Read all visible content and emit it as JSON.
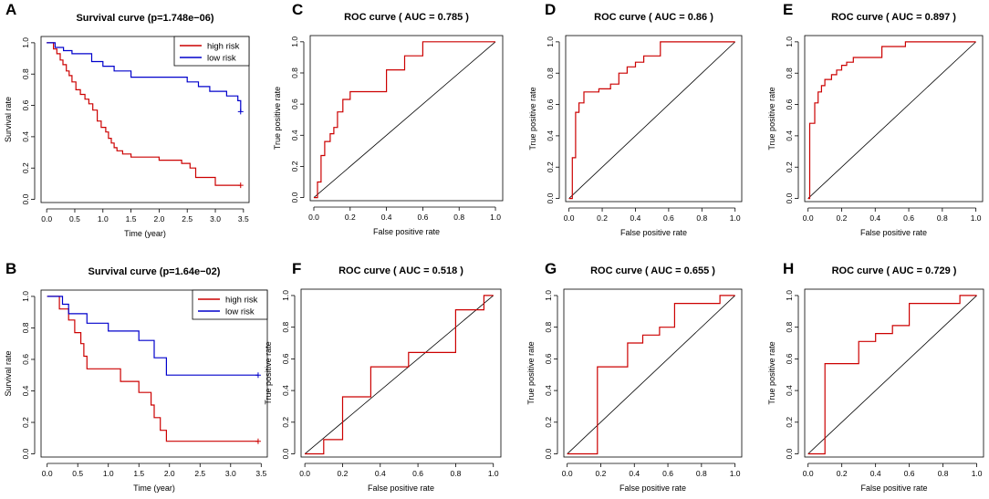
{
  "chart_data": [
    {
      "panel": "A",
      "type": "line",
      "subtype": "kaplan-meier",
      "title": "Survival curve (p=1.748e−06)",
      "xlabel": "Time (year)",
      "ylabel": "Survival rate",
      "xlim": [
        -0.1,
        3.6
      ],
      "ylim": [
        -0.02,
        1.04
      ],
      "xticks": [
        "0.0",
        "0.5",
        "1.0",
        "1.5",
        "2.0",
        "2.5",
        "3.0",
        "3.5"
      ],
      "yticks": [
        "0.0",
        "0.2",
        "0.4",
        "0.6",
        "0.8",
        "1.0"
      ],
      "legend": {
        "position": "top-right",
        "entries": [
          "high risk",
          "low risk"
        ]
      },
      "series": [
        {
          "name": "high risk",
          "color": "#cc0000",
          "times": [
            0.12,
            0.18,
            0.24,
            0.29,
            0.35,
            0.4,
            0.45,
            0.52,
            0.6,
            0.68,
            0.75,
            0.82,
            0.9,
            0.97,
            1.05,
            1.1,
            1.15,
            1.2,
            1.25,
            1.35,
            1.5,
            2.0,
            2.4,
            2.55,
            2.65,
            3.0
          ],
          "survival": [
            0.96,
            0.93,
            0.89,
            0.86,
            0.82,
            0.79,
            0.75,
            0.7,
            0.67,
            0.64,
            0.61,
            0.57,
            0.5,
            0.46,
            0.43,
            0.39,
            0.36,
            0.33,
            0.31,
            0.29,
            0.27,
            0.25,
            0.23,
            0.2,
            0.14,
            0.09
          ],
          "censor_at": [
            3.45
          ]
        },
        {
          "name": "low risk",
          "color": "#0000cc",
          "times": [
            0.15,
            0.3,
            0.45,
            0.8,
            1.0,
            1.2,
            1.5,
            2.5,
            2.7,
            2.9,
            3.2,
            3.4,
            3.45
          ],
          "survival": [
            0.97,
            0.95,
            0.93,
            0.88,
            0.85,
            0.82,
            0.78,
            0.75,
            0.72,
            0.69,
            0.66,
            0.63,
            0.56
          ],
          "censor_at": [
            3.45
          ]
        }
      ]
    },
    {
      "panel": "B",
      "type": "line",
      "subtype": "kaplan-meier",
      "title": "Survival curve (p=1.64e−02)",
      "xlabel": "Time (year)",
      "ylabel": "Survival rate",
      "xlim": [
        -0.1,
        3.6
      ],
      "ylim": [
        -0.02,
        1.04
      ],
      "xticks": [
        "0.0",
        "0.5",
        "1.0",
        "1.5",
        "2.0",
        "2.5",
        "3.0",
        "3.5"
      ],
      "yticks": [
        "0.0",
        "0.2",
        "0.4",
        "0.6",
        "0.8",
        "1.0"
      ],
      "legend": {
        "position": "top-right",
        "entries": [
          "high risk",
          "low risk"
        ]
      },
      "series": [
        {
          "name": "high risk",
          "color": "#cc0000",
          "times": [
            0.2,
            0.35,
            0.45,
            0.55,
            0.6,
            0.65,
            0.95,
            1.2,
            1.5,
            1.7,
            1.75,
            1.85,
            1.95,
            2.95
          ],
          "survival": [
            0.92,
            0.85,
            0.77,
            0.7,
            0.62,
            0.54,
            0.54,
            0.46,
            0.39,
            0.31,
            0.23,
            0.15,
            0.08,
            0.08
          ],
          "censor_at": [
            3.45
          ]
        },
        {
          "name": "low risk",
          "color": "#0000cc",
          "times": [
            0.25,
            0.35,
            0.65,
            1.0,
            1.5,
            1.75,
            1.95
          ],
          "survival": [
            0.95,
            0.89,
            0.83,
            0.78,
            0.72,
            0.61,
            0.5
          ],
          "censor_at": [
            3.45
          ]
        }
      ]
    },
    {
      "panel": "C",
      "type": "line",
      "subtype": "roc",
      "title": "ROC curve ( AUC =  0.785 )",
      "xlabel": "False positive rate",
      "ylabel": "True positive rate",
      "xlim": [
        -0.02,
        1.04
      ],
      "ylim": [
        -0.02,
        1.04
      ],
      "xticks": [
        "0.0",
        "0.2",
        "0.4",
        "0.6",
        "0.8",
        "1.0"
      ],
      "yticks": [
        "0.0",
        "0.2",
        "0.4",
        "0.6",
        "0.8",
        "1.0"
      ],
      "series": [
        {
          "name": "ROC",
          "color": "#cc0000",
          "fpr": [
            0,
            0.02,
            0.02,
            0.04,
            0.04,
            0.06,
            0.06,
            0.09,
            0.09,
            0.11,
            0.11,
            0.13,
            0.13,
            0.16,
            0.16,
            0.2,
            0.2,
            0.4,
            0.4,
            0.5,
            0.5,
            0.6,
            0.6,
            1.0
          ],
          "tpr": [
            0,
            0,
            0.1,
            0.1,
            0.27,
            0.27,
            0.36,
            0.36,
            0.41,
            0.41,
            0.45,
            0.45,
            0.55,
            0.55,
            0.63,
            0.63,
            0.68,
            0.68,
            0.82,
            0.82,
            0.91,
            0.91,
            1.0,
            1.0
          ]
        }
      ]
    },
    {
      "panel": "D",
      "type": "line",
      "subtype": "roc",
      "title": "ROC curve ( AUC =  0.86 )",
      "xlabel": "False positive rate",
      "ylabel": "True positive rate",
      "xlim": [
        -0.02,
        1.04
      ],
      "ylim": [
        -0.02,
        1.04
      ],
      "xticks": [
        "0.0",
        "0.2",
        "0.4",
        "0.6",
        "0.8",
        "1.0"
      ],
      "yticks": [
        "0.0",
        "0.2",
        "0.4",
        "0.6",
        "0.8",
        "1.0"
      ],
      "series": [
        {
          "name": "ROC",
          "color": "#cc0000",
          "fpr": [
            0,
            0.02,
            0.02,
            0.04,
            0.04,
            0.06,
            0.06,
            0.09,
            0.09,
            0.18,
            0.18,
            0.25,
            0.25,
            0.3,
            0.3,
            0.35,
            0.35,
            0.4,
            0.4,
            0.45,
            0.45,
            0.55,
            0.55,
            1.0
          ],
          "tpr": [
            0,
            0,
            0.26,
            0.26,
            0.55,
            0.55,
            0.61,
            0.61,
            0.68,
            0.68,
            0.7,
            0.7,
            0.73,
            0.73,
            0.8,
            0.8,
            0.84,
            0.84,
            0.87,
            0.87,
            0.91,
            0.91,
            1.0,
            1.0
          ]
        }
      ]
    },
    {
      "panel": "E",
      "type": "line",
      "subtype": "roc",
      "title": "ROC curve ( AUC =  0.897 )",
      "xlabel": "False positive rate",
      "ylabel": "True positive rate",
      "xlim": [
        -0.02,
        1.04
      ],
      "ylim": [
        -0.02,
        1.04
      ],
      "xticks": [
        "0.0",
        "0.2",
        "0.4",
        "0.6",
        "0.8",
        "1.0"
      ],
      "yticks": [
        "0.0",
        "0.2",
        "0.4",
        "0.6",
        "0.8",
        "1.0"
      ],
      "series": [
        {
          "name": "ROC",
          "color": "#cc0000",
          "fpr": [
            0,
            0.01,
            0.01,
            0.04,
            0.04,
            0.06,
            0.06,
            0.08,
            0.08,
            0.1,
            0.1,
            0.14,
            0.14,
            0.17,
            0.17,
            0.2,
            0.2,
            0.23,
            0.23,
            0.27,
            0.27,
            0.44,
            0.44,
            0.58,
            0.58,
            1.0
          ],
          "tpr": [
            0,
            0,
            0.48,
            0.48,
            0.61,
            0.61,
            0.68,
            0.68,
            0.72,
            0.72,
            0.76,
            0.76,
            0.79,
            0.79,
            0.82,
            0.82,
            0.85,
            0.85,
            0.87,
            0.87,
            0.9,
            0.9,
            0.97,
            0.97,
            1.0,
            1.0
          ]
        }
      ]
    },
    {
      "panel": "F",
      "type": "line",
      "subtype": "roc",
      "title": "ROC curve ( AUC =  0.518 )",
      "xlabel": "False positive rate",
      "ylabel": "True positive rate",
      "xlim": [
        -0.02,
        1.04
      ],
      "ylim": [
        -0.02,
        1.04
      ],
      "xticks": [
        "0.0",
        "0.2",
        "0.4",
        "0.6",
        "0.8",
        "1.0"
      ],
      "yticks": [
        "0.0",
        "0.2",
        "0.4",
        "0.6",
        "0.8",
        "1.0"
      ],
      "series": [
        {
          "name": "ROC",
          "color": "#cc0000",
          "fpr": [
            0,
            0.1,
            0.1,
            0.2,
            0.2,
            0.35,
            0.35,
            0.55,
            0.55,
            0.8,
            0.8,
            0.95,
            0.95,
            1.0
          ],
          "tpr": [
            0,
            0,
            0.09,
            0.09,
            0.36,
            0.36,
            0.55,
            0.55,
            0.64,
            0.64,
            0.91,
            0.91,
            1.0,
            1.0
          ]
        }
      ]
    },
    {
      "panel": "G",
      "type": "line",
      "subtype": "roc",
      "title": "ROC curve ( AUC =  0.655 )",
      "xlabel": "False positive rate",
      "ylabel": "True positive rate",
      "xlim": [
        -0.02,
        1.04
      ],
      "ylim": [
        -0.02,
        1.04
      ],
      "xticks": [
        "0.0",
        "0.2",
        "0.4",
        "0.6",
        "0.8",
        "1.0"
      ],
      "yticks": [
        "0.0",
        "0.2",
        "0.4",
        "0.6",
        "0.8",
        "1.0"
      ],
      "series": [
        {
          "name": "ROC",
          "color": "#cc0000",
          "fpr": [
            0,
            0.18,
            0.18,
            0.36,
            0.36,
            0.45,
            0.45,
            0.55,
            0.55,
            0.64,
            0.64,
            0.91,
            0.91,
            1.0
          ],
          "tpr": [
            0,
            0,
            0.55,
            0.55,
            0.7,
            0.7,
            0.75,
            0.75,
            0.8,
            0.8,
            0.95,
            0.95,
            1.0,
            1.0
          ]
        }
      ]
    },
    {
      "panel": "H",
      "type": "line",
      "subtype": "roc",
      "title": "ROC curve ( AUC =  0.729 )",
      "xlabel": "False positive rate",
      "ylabel": "True positive rate",
      "xlim": [
        -0.02,
        1.04
      ],
      "ylim": [
        -0.02,
        1.04
      ],
      "xticks": [
        "0.0",
        "0.2",
        "0.4",
        "0.6",
        "0.8",
        "1.0"
      ],
      "yticks": [
        "0.0",
        "0.2",
        "0.4",
        "0.6",
        "0.8",
        "1.0"
      ],
      "series": [
        {
          "name": "ROC",
          "color": "#cc0000",
          "fpr": [
            0,
            0.1,
            0.1,
            0.3,
            0.3,
            0.4,
            0.4,
            0.5,
            0.5,
            0.6,
            0.6,
            0.9,
            0.9,
            1.0
          ],
          "tpr": [
            0,
            0,
            0.57,
            0.57,
            0.71,
            0.71,
            0.76,
            0.76,
            0.81,
            0.81,
            0.95,
            0.95,
            1.0,
            1.0
          ]
        }
      ]
    }
  ]
}
